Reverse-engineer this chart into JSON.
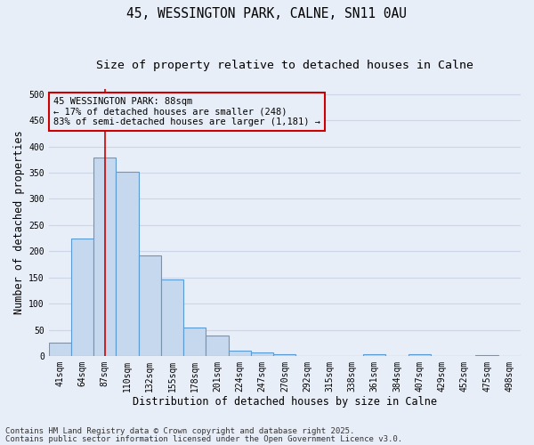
{
  "title_line1": "45, WESSINGTON PARK, CALNE, SN11 0AU",
  "title_line2": "Size of property relative to detached houses in Calne",
  "xlabel": "Distribution of detached houses by size in Calne",
  "ylabel": "Number of detached properties",
  "categories": [
    "41sqm",
    "64sqm",
    "87sqm",
    "110sqm",
    "132sqm",
    "155sqm",
    "178sqm",
    "201sqm",
    "224sqm",
    "247sqm",
    "270sqm",
    "292sqm",
    "315sqm",
    "338sqm",
    "361sqm",
    "384sqm",
    "407sqm",
    "429sqm",
    "452sqm",
    "475sqm",
    "498sqm"
  ],
  "values": [
    25,
    225,
    378,
    352,
    193,
    147,
    55,
    40,
    11,
    7,
    4,
    0,
    0,
    0,
    4,
    0,
    3,
    0,
    0,
    2,
    0
  ],
  "bar_color": "#c5d8ed",
  "bar_edge_color": "#5b9bd5",
  "bar_edge_width": 0.8,
  "grid_color": "#ccd6e8",
  "background_color": "#e8eef8",
  "vline_x_index": 2,
  "vline_color": "#cc0000",
  "annotation_text": "45 WESSINGTON PARK: 88sqm\n← 17% of detached houses are smaller (248)\n83% of semi-detached houses are larger (1,181) →",
  "annotation_box_color": "#cc0000",
  "ylim": [
    0,
    510
  ],
  "yticks": [
    0,
    50,
    100,
    150,
    200,
    250,
    300,
    350,
    400,
    450,
    500
  ],
  "footer_line1": "Contains HM Land Registry data © Crown copyright and database right 2025.",
  "footer_line2": "Contains public sector information licensed under the Open Government Licence v3.0.",
  "title_fontsize": 10.5,
  "subtitle_fontsize": 9.5,
  "axis_label_fontsize": 8.5,
  "tick_fontsize": 7,
  "annotation_fontsize": 7.5,
  "footer_fontsize": 6.5
}
